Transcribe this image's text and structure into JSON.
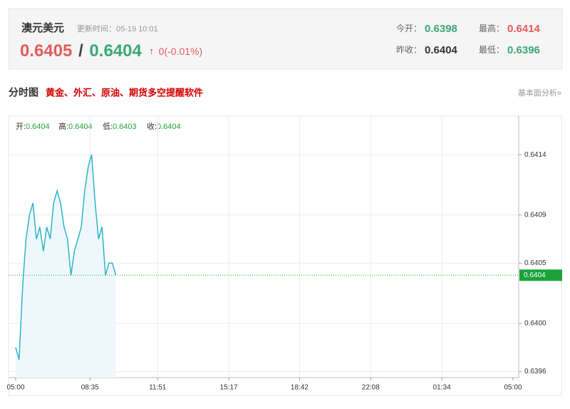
{
  "header": {
    "name": "澳元美元",
    "update_time": "更新时间：05-19 10:01",
    "price_bid": "0.6405",
    "separator": "/",
    "price_ask": "0.6404",
    "arrow": "↑",
    "change": "0(-0.01%)",
    "stats": [
      {
        "label": "今开：",
        "value": "0.6398"
      },
      {
        "label": "最高：",
        "value": "0.6414"
      },
      {
        "label": "昨收：",
        "value": "0.6404"
      },
      {
        "label": "最低：",
        "value": "0.6396"
      }
    ]
  },
  "section": {
    "title": "分时图",
    "promo": "黄金、外汇、原油、期货多空提醒软件",
    "link": "基本面分析»"
  },
  "ohlc": [
    {
      "label": "开:",
      "value": "0.6404"
    },
    {
      "label": "高:",
      "value": "0.6404"
    },
    {
      "label": "低:",
      "value": "0.6403"
    },
    {
      "label": "收:",
      "value": "0.6404"
    }
  ],
  "chart_data": {
    "type": "line",
    "color": "#2db4c8",
    "grid": true,
    "x": [
      0,
      10,
      20,
      30,
      40,
      50,
      60,
      70,
      80,
      90,
      100,
      110,
      120,
      130,
      140,
      150,
      160,
      170,
      180,
      190,
      200,
      210,
      220,
      230,
      240,
      250,
      260,
      270,
      280,
      290
    ],
    "values": [
      0.6398,
      0.6397,
      0.6403,
      0.6407,
      0.6409,
      0.641,
      0.6407,
      0.6408,
      0.6406,
      0.6408,
      0.6407,
      0.641,
      0.6411,
      0.641,
      0.6408,
      0.6407,
      0.6404,
      0.6406,
      0.6407,
      0.6408,
      0.6411,
      0.6413,
      0.6414,
      0.641,
      0.6407,
      0.6408,
      0.6404,
      0.6405,
      0.6405,
      0.6404
    ],
    "xlim": [
      0,
      1440
    ],
    "xticks": [
      {
        "value": 0,
        "label": "05:00"
      },
      {
        "value": 215,
        "label": "08:35"
      },
      {
        "value": 411,
        "label": "11:51"
      },
      {
        "value": 617,
        "label": "15:17"
      },
      {
        "value": 822,
        "label": "18:42"
      },
      {
        "value": 1028,
        "label": "22:08"
      },
      {
        "value": 1234,
        "label": "01:34"
      },
      {
        "value": 1440,
        "label": "05:00"
      }
    ],
    "ylim": [
      0.63955,
      0.64172
    ],
    "yticks": [
      0.6396,
      {
        "value": 0.64,
        "label": "0.6400"
      },
      0.6405,
      0.6409,
      0.6414
    ],
    "reference_line": 0.6404
  }
}
